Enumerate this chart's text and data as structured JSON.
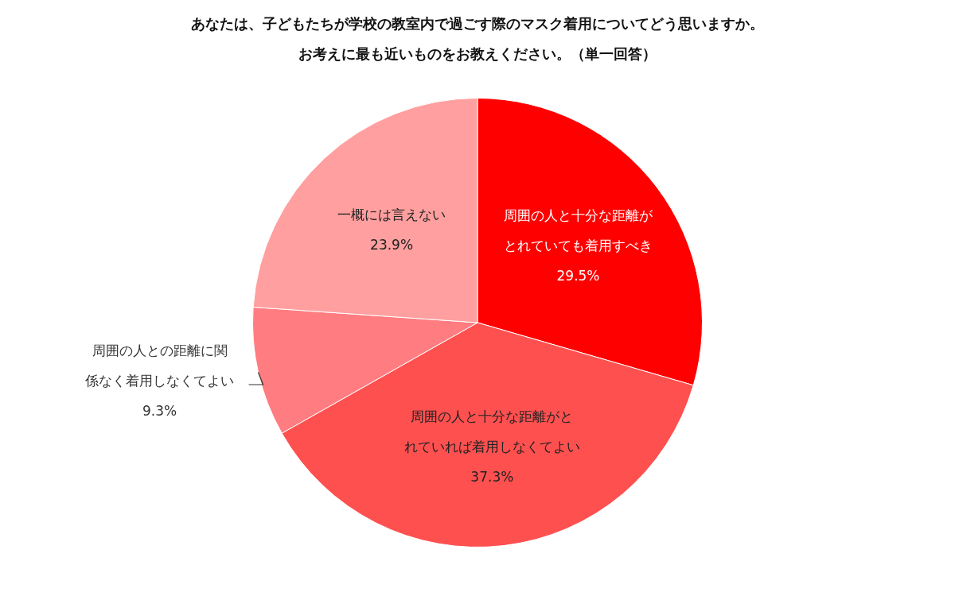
{
  "chart_data": {
    "type": "pie",
    "title": "あなたは、子どもたちが学校の教室内で過ごす際のマスク着用についてどう思いますか。",
    "subtitle": "お考えに最も近いものをお教えください。（単一回答）",
    "categories": [
      "周囲の人と十分な距離がとれていても着用すべき",
      "周囲の人と十分な距離がとれていれば着用しなくてよい",
      "周囲の人との距離に関係なく着用しなくてよい",
      "一概には言えない"
    ],
    "values": [
      29.5,
      37.3,
      9.3,
      23.9
    ],
    "value_labels": [
      "29.5%",
      "37.3%",
      "9.3%",
      "23.9%"
    ],
    "colors": [
      "#ff0000",
      "#ff5050",
      "#ff7c80",
      "#ff9f9f"
    ],
    "legend": false
  }
}
